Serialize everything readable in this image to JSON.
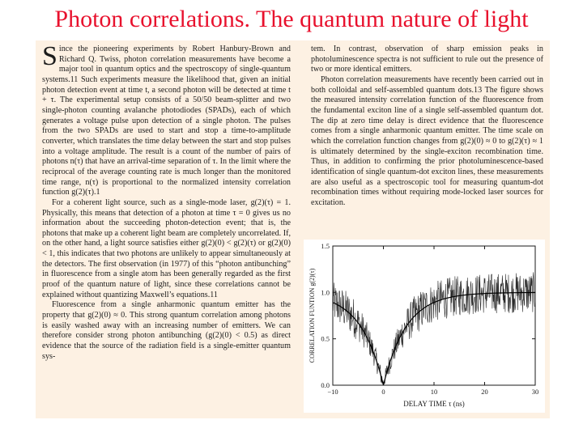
{
  "slide": {
    "title": "Photon correlations. The quantum nature of light"
  },
  "article": {
    "left": {
      "dropcap": "S",
      "p1": "ince the pioneering experiments by Robert Hanbury-Brown and Richard Q. Twiss, photon correlation measurements have become a major tool in quantum optics and the spectroscopy of single-quantum systems.11 Such experiments measure the likelihood that, given an initial photon detection event at time t, a second photon will be detected at time t + τ. The experimental setup consists of a 50/50 beam-splitter and two single-photon counting avalanche photodiodes (SPADs), each of which generates a voltage pulse upon detection of a single photon. The pulses from the two SPADs are used to start and stop a time-to-amplitude converter, which translates the time delay between the start and stop pulses into a voltage amplitude. The result is a count of the number of pairs of photons n(τ) that have an arrival-time separation of τ. In the limit where the reciprocal of the average counting rate is much longer than the monitored time range, n(τ) is proportional to the normalized intensity correlation function g(2)(τ).1",
      "p2": "For a coherent light source, such as a single-mode laser, g(2)(τ) = 1. Physically, this means that detection of a photon at time τ = 0 gives us no information about the succeeding photon-detection event; that is, the photons that make up a coherent light beam are completely uncorrelated. If, on the other hand, a light source satisfies either g(2)(0) < g(2)(τ) or g(2)(0) < 1, this indicates that two photons are unlikely to appear simultaneously at the detectors. The first observation (in 1977) of this “photon antibunching” in fluorescence from a single atom has been generally regarded as the first proof of the quantum nature of light, since these correlations cannot be explained without quantizing Maxwell’s equations.11",
      "p3": "Fluorescence from a single anharmonic quantum emitter has the property that g(2)(0) ≈ 0. This strong quantum correlation among photons is easily washed away with an increasing number of emitters. We can therefore consider strong photon antibunching (g(2)(0) < 0.5) as direct evidence that the source of the radiation field is a single-emitter quantum sys-"
    },
    "right": {
      "p1": "tem. In contrast, observation of sharp emission peaks in photoluminescence spectra is not sufficient to rule out the presence of two or more identical emitters.",
      "p2": "Photon correlation measurements have recently been carried out in both colloidal and self-assembled quantum dots.13 The figure shows the measured intensity correlation function of the fluorescence from the fundamental exciton line of a single self-assembled quantum dot. The dip at zero time delay is direct evidence that the fluorescence comes from a single anharmonic quantum emitter. The time scale on which the correlation function changes from g(2)(0) ≈ 0 to g(2)(τ) ≈ 1 is ultimately determined by the single-exciton recombination time. Thus, in addition to confirming the prior photoluminescence-based identification of single quantum-dot exciton lines, these measurements are also useful as a spectroscopic tool for measuring quantum-dot recombination times without requiring mode-locked laser sources for excitation."
    }
  },
  "figure": {
    "xlabel": "DELAY TIME τ (ns)",
    "ylabel": "CORRELATION FUNTION g(2)(τ)",
    "xticks": [
      "−10",
      "0",
      "10",
      "20",
      "30"
    ],
    "yticks": [
      "0.0",
      "0.5",
      "1.0",
      "1.5"
    ],
    "xlim": [
      -10,
      30
    ],
    "ylim": [
      0,
      1.5
    ],
    "fit_tau_ns": 4.5,
    "fit_center_ns": 0,
    "colors": {
      "axis": "#1a1a1a",
      "data": "#2a2a2a",
      "fit": "#000000"
    }
  }
}
